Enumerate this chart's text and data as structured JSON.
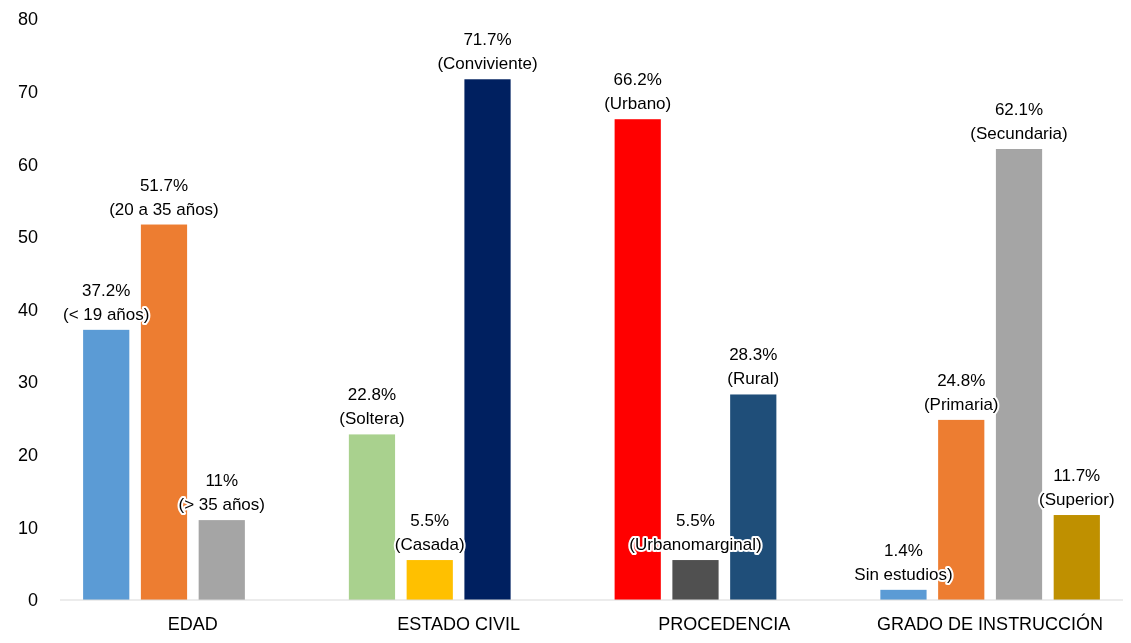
{
  "chart_data": {
    "type": "bar",
    "categories": [
      "EDAD",
      "ESTADO CIVIL",
      "PROCEDENCIA",
      "GRADO DE INSTRUCCIÓN"
    ],
    "series": [
      {
        "colors": [
          "#5b9bd5",
          "#a9d18e",
          "#ff0000",
          "#5b9bd5"
        ],
        "values": [
          37.2,
          22.8,
          66.2,
          1.4
        ],
        "value_labels": [
          "37.2%\n(< 19 años)",
          "22.8%\n(Soltera)",
          "66.2%\n(Urbano)",
          "1.4%\nSin estudios)"
        ]
      },
      {
        "colors": [
          "#ed7d31",
          "#ffc000",
          "#505050",
          "#ed7d31"
        ],
        "values": [
          51.7,
          5.5,
          5.5,
          24.8
        ],
        "value_labels": [
          "51.7%\n(20 a 35 años)",
          "5.5%\n(Casada)",
          "5.5%\n(Urbanomarginal)",
          "24.8%\n(Primaria)"
        ]
      },
      {
        "colors": [
          "#a5a5a5",
          "#002060",
          "#1f4e79",
          "#a5a5a5"
        ],
        "values": [
          11,
          71.7,
          28.3,
          62.1
        ],
        "value_labels": [
          "11%\n(> 35 años)",
          "71.7%\n(Conviviente)",
          "28.3%\n(Rural)",
          "62.1%\n(Secundaria)"
        ]
      },
      {
        "colors": [
          null,
          null,
          null,
          "#bf9000"
        ],
        "values": [
          null,
          null,
          null,
          11.7
        ],
        "value_labels": [
          null,
          null,
          null,
          "11.7%\n(Superior)"
        ]
      }
    ],
    "ylim": [
      0,
      80
    ],
    "yticks": [
      0,
      10,
      20,
      30,
      40,
      50,
      60,
      70,
      80
    ],
    "grid": false
  }
}
